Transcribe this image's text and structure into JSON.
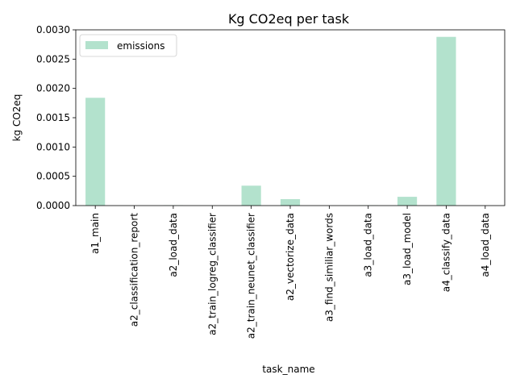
{
  "chart_data": {
    "type": "bar",
    "title": "Kg CO2eq per task",
    "xlabel": "task_name",
    "ylabel": "kg CO2eq",
    "categories": [
      "a1_main",
      "a2_classification_report",
      "a2_load_data",
      "a2_train_logreg_classifier",
      "a2_train_neunet_classifier",
      "a2_vectorize_data",
      "a3_find_similiar_words",
      "a3_load_data",
      "a3_load_model",
      "a4_classify_data",
      "a4_load_data"
    ],
    "series": [
      {
        "name": "emissions",
        "color": "#b3e2cd",
        "values": [
          0.00184,
          0.0,
          5e-06,
          0.0,
          0.00034,
          0.00011,
          0.0,
          5e-06,
          0.00015,
          0.00288,
          0.0
        ]
      }
    ],
    "ylim": [
      0,
      0.003
    ],
    "yticks": [
      "0.0000",
      "0.0005",
      "0.0010",
      "0.0015",
      "0.0020",
      "0.0025",
      "0.0030"
    ],
    "ytick_values": [
      0,
      0.0005,
      0.001,
      0.0015,
      0.002,
      0.0025,
      0.003
    ],
    "grid": false,
    "legend": "top-left"
  }
}
